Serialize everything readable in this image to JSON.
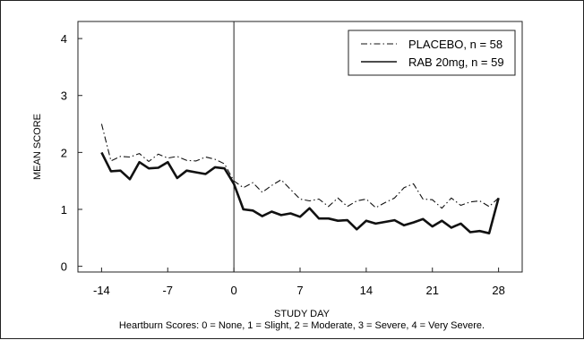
{
  "chart_data": {
    "type": "line",
    "xlabel": "STUDY DAY",
    "ylabel": "MEAN SCORE",
    "footnote": "Heartburn Scores: 0 = None, 1 = Slight, 2 = Moderate, 3 = Severe, 4 = Very Severe.",
    "xlim": [
      -16.5,
      30.5
    ],
    "ylim": [
      -0.1,
      4.3
    ],
    "xticks": [
      -14,
      -7,
      0,
      7,
      14,
      21,
      28
    ],
    "yticks": [
      0,
      1,
      2,
      3,
      4
    ],
    "reference_line_x": 0,
    "legend_position": "top-right",
    "x": [
      -14,
      -13,
      -12,
      -11,
      -10,
      -9,
      -8,
      -7,
      -6,
      -5,
      -4,
      -3,
      -2,
      -1,
      0,
      1,
      2,
      3,
      4,
      5,
      6,
      7,
      8,
      9,
      10,
      11,
      12,
      13,
      14,
      15,
      16,
      17,
      18,
      19,
      20,
      21,
      22,
      23,
      24,
      25,
      26,
      27,
      28
    ],
    "series": [
      {
        "name": "PLACEBO, n = 58",
        "style": "dash-dot",
        "values": [
          2.5,
          1.85,
          1.93,
          1.92,
          1.98,
          1.84,
          1.97,
          1.9,
          1.93,
          1.86,
          1.85,
          1.92,
          1.88,
          1.8,
          1.5,
          1.38,
          1.47,
          1.3,
          1.42,
          1.52,
          1.35,
          1.18,
          1.15,
          1.18,
          1.05,
          1.2,
          1.05,
          1.15,
          1.18,
          1.03,
          1.12,
          1.2,
          1.38,
          1.45,
          1.18,
          1.17,
          1.02,
          1.2,
          1.07,
          1.13,
          1.15,
          1.05,
          1.2
        ]
      },
      {
        "name": "RAB 20mg, n = 59",
        "style": "solid",
        "values": [
          2.0,
          1.67,
          1.68,
          1.53,
          1.83,
          1.72,
          1.73,
          1.83,
          1.55,
          1.68,
          1.65,
          1.62,
          1.74,
          1.72,
          1.45,
          1.0,
          0.98,
          0.88,
          0.96,
          0.9,
          0.93,
          0.87,
          1.02,
          0.84,
          0.84,
          0.8,
          0.81,
          0.65,
          0.8,
          0.75,
          0.78,
          0.81,
          0.72,
          0.77,
          0.83,
          0.7,
          0.8,
          0.68,
          0.75,
          0.6,
          0.62,
          0.58,
          1.2
        ]
      }
    ]
  }
}
